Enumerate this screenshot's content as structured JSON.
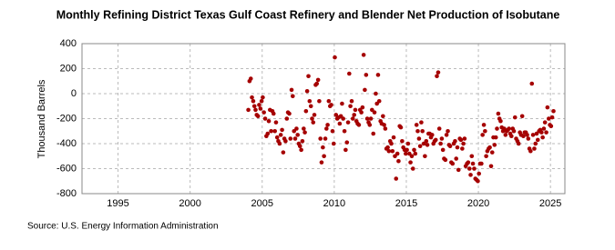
{
  "chart_data": {
    "type": "scatter",
    "title": "Monthly Refining District Texas Gulf Coast Refinery and Blender Net Production of Isobutane",
    "y_label": "Thousand Barrels",
    "source": "Source: U.S. Energy Information Administration",
    "color": "#a50000",
    "grid": true,
    "xlim": [
      1992.5,
      2026
    ],
    "xticks": [
      1995,
      2000,
      2005,
      2010,
      2015,
      2020,
      2025
    ],
    "ylim": [
      -800,
      400
    ],
    "yticks": [
      -800,
      -600,
      -400,
      -200,
      0,
      200,
      400
    ],
    "x": [
      2004.04,
      2004.12,
      2004.21,
      2004.29,
      2004.38,
      2004.46,
      2004.54,
      2004.62,
      2004.71,
      2004.79,
      2004.88,
      2004.96,
      2005.04,
      2005.12,
      2005.21,
      2005.29,
      2005.38,
      2005.46,
      2005.54,
      2005.62,
      2005.71,
      2005.79,
      2005.88,
      2005.96,
      2006.04,
      2006.12,
      2006.21,
      2006.29,
      2006.38,
      2006.46,
      2006.54,
      2006.62,
      2006.71,
      2006.79,
      2006.88,
      2006.96,
      2007.04,
      2007.12,
      2007.21,
      2007.29,
      2007.38,
      2007.46,
      2007.54,
      2007.62,
      2007.71,
      2007.79,
      2007.88,
      2007.96,
      2008.04,
      2008.12,
      2008.21,
      2008.29,
      2008.38,
      2008.46,
      2008.54,
      2008.62,
      2008.71,
      2008.79,
      2008.88,
      2008.96,
      2009.04,
      2009.12,
      2009.21,
      2009.29,
      2009.38,
      2009.46,
      2009.54,
      2009.62,
      2009.71,
      2009.79,
      2009.88,
      2009.96,
      2010.04,
      2010.12,
      2010.21,
      2010.29,
      2010.38,
      2010.46,
      2010.54,
      2010.62,
      2010.71,
      2010.79,
      2010.88,
      2010.96,
      2011.04,
      2011.12,
      2011.21,
      2011.29,
      2011.38,
      2011.46,
      2011.54,
      2011.62,
      2011.71,
      2011.79,
      2011.88,
      2011.96,
      2012.04,
      2012.12,
      2012.21,
      2012.29,
      2012.38,
      2012.46,
      2012.54,
      2012.62,
      2012.71,
      2012.79,
      2012.88,
      2012.96,
      2013.04,
      2013.12,
      2013.21,
      2013.29,
      2013.38,
      2013.46,
      2013.54,
      2013.62,
      2013.71,
      2013.79,
      2013.88,
      2013.96,
      2014.04,
      2014.12,
      2014.21,
      2014.29,
      2014.38,
      2014.46,
      2014.54,
      2014.62,
      2014.71,
      2014.79,
      2014.88,
      2014.96,
      2015.04,
      2015.12,
      2015.21,
      2015.29,
      2015.38,
      2015.46,
      2015.54,
      2015.62,
      2015.71,
      2015.79,
      2015.88,
      2015.96,
      2016.04,
      2016.12,
      2016.21,
      2016.29,
      2016.38,
      2016.46,
      2016.54,
      2016.62,
      2016.71,
      2016.79,
      2016.88,
      2016.96,
      2017.04,
      2017.12,
      2017.21,
      2017.29,
      2017.38,
      2017.46,
      2017.54,
      2017.62,
      2017.71,
      2017.79,
      2017.88,
      2017.96,
      2018.04,
      2018.12,
      2018.21,
      2018.29,
      2018.38,
      2018.46,
      2018.54,
      2018.62,
      2018.71,
      2018.79,
      2018.88,
      2018.96,
      2019.04,
      2019.12,
      2019.21,
      2019.29,
      2019.38,
      2019.46,
      2019.54,
      2019.62,
      2019.71,
      2019.79,
      2019.88,
      2019.96,
      2020.04,
      2020.12,
      2020.21,
      2020.29,
      2020.38,
      2020.46,
      2020.54,
      2020.62,
      2020.71,
      2020.79,
      2020.88,
      2020.96,
      2021.04,
      2021.12,
      2021.21,
      2021.29,
      2021.38,
      2021.46,
      2021.54,
      2021.62,
      2021.71,
      2021.79,
      2021.88,
      2021.96,
      2022.04,
      2022.12,
      2022.21,
      2022.29,
      2022.38,
      2022.46,
      2022.54,
      2022.62,
      2022.71,
      2022.79,
      2022.88,
      2022.96,
      2023.04,
      2023.12,
      2023.21,
      2023.29,
      2023.38,
      2023.46,
      2023.54,
      2023.62,
      2023.71,
      2023.79,
      2023.88,
      2023.96,
      2024.04,
      2024.12,
      2024.21,
      2024.29,
      2024.38,
      2024.46,
      2024.54,
      2024.62,
      2024.71,
      2024.79,
      2024.88,
      2024.96,
      2025.04,
      2025.12,
      2025.21
    ],
    "values": [
      -130,
      100,
      120,
      -30,
      -60,
      -100,
      -130,
      -170,
      -180,
      -90,
      -120,
      -60,
      -30,
      -150,
      -200,
      -340,
      -320,
      -220,
      -130,
      -300,
      -140,
      -160,
      -300,
      -230,
      -350,
      -380,
      -400,
      -330,
      -290,
      -470,
      -360,
      -380,
      -200,
      -150,
      -160,
      -360,
      30,
      -20,
      -300,
      -360,
      -280,
      -330,
      -400,
      -420,
      -450,
      -380,
      -280,
      -310,
      -140,
      20,
      140,
      -60,
      -100,
      -200,
      -230,
      -170,
      70,
      80,
      110,
      -60,
      -360,
      -550,
      -430,
      -500,
      -360,
      -280,
      -250,
      -60,
      -100,
      -90,
      -300,
      -400,
      290,
      -170,
      -200,
      -190,
      -240,
      -180,
      -80,
      -200,
      -300,
      -450,
      -390,
      -230,
      160,
      -100,
      -60,
      -200,
      -170,
      -130,
      -220,
      -240,
      -250,
      -130,
      -150,
      -110,
      310,
      30,
      150,
      -200,
      -230,
      -250,
      -200,
      -130,
      -320,
      -150,
      0,
      -80,
      150,
      -60,
      -220,
      -240,
      -180,
      -250,
      -280,
      -440,
      -430,
      -460,
      -380,
      -400,
      -460,
      -350,
      -500,
      -680,
      -480,
      -540,
      -260,
      -270,
      -380,
      -430,
      -450,
      -480,
      -450,
      -400,
      -480,
      -550,
      -500,
      -600,
      -450,
      -480,
      -250,
      -300,
      -360,
      -420,
      -230,
      -300,
      -400,
      -500,
      -380,
      -410,
      -320,
      -320,
      -350,
      -330,
      -400,
      -380,
      -370,
      140,
      170,
      -280,
      -400,
      -360,
      -450,
      -520,
      -530,
      -330,
      -300,
      -410,
      -420,
      -550,
      -560,
      -400,
      -380,
      -520,
      -430,
      -610,
      -360,
      -370,
      -440,
      -400,
      -360,
      -580,
      -560,
      -550,
      -600,
      -650,
      -500,
      -560,
      -600,
      -680,
      -690,
      -700,
      -640,
      -560,
      -560,
      -330,
      -250,
      -300,
      -500,
      -460,
      -440,
      -430,
      -580,
      -470,
      -350,
      -410,
      -350,
      -280,
      -160,
      -200,
      -220,
      -270,
      -300,
      -280,
      -330,
      -300,
      -290,
      -280,
      -320,
      -340,
      -280,
      -300,
      -190,
      -360,
      -380,
      -400,
      -310,
      -330,
      -180,
      -340,
      -310,
      -310,
      -330,
      -360,
      -440,
      -460,
      80,
      -330,
      -440,
      -400,
      -320,
      -370,
      -300,
      -290,
      -310,
      -350,
      -280,
      -230,
      -310,
      -110,
      -200,
      -250,
      -260,
      -190,
      -140
    ]
  }
}
